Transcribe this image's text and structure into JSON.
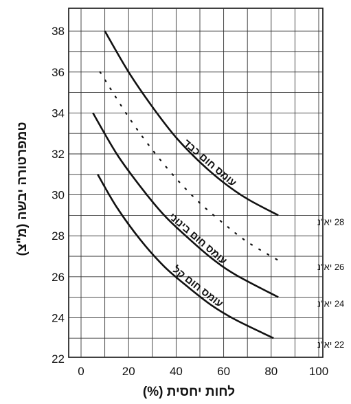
{
  "chart_data": {
    "type": "line",
    "xlabel": "לחות יחסית (%)",
    "ylabel": "טמפרטורה יבשה (מ\"צ)",
    "xlim": [
      0,
      100
    ],
    "ylim": [
      22,
      39
    ],
    "xticks": [
      "0",
      "20",
      "40",
      "60",
      "80",
      "100"
    ],
    "yticks": [
      "22",
      "24",
      "26",
      "28",
      "30",
      "32",
      "34",
      "36",
      "38"
    ],
    "grid": true,
    "series": [
      {
        "name": "עומס חום כבד",
        "end_label": "28 יא\"נ",
        "style": "solid",
        "x": [
          10,
          20,
          30,
          40,
          50,
          60,
          70,
          83
        ],
        "y": [
          38.0,
          36.0,
          34.3,
          32.8,
          31.6,
          30.6,
          29.8,
          29.0
        ]
      },
      {
        "name": "",
        "end_label": "26 יא\"נ",
        "style": "dotted",
        "x": [
          8,
          20,
          30,
          40,
          50,
          60,
          70,
          83
        ],
        "y": [
          36.0,
          33.8,
          32.2,
          30.8,
          29.6,
          28.6,
          27.7,
          26.8
        ]
      },
      {
        "name": "עומס חום בינוני",
        "end_label": "24 יא\"נ",
        "style": "solid",
        "x": [
          5,
          15,
          25,
          35,
          45,
          55,
          65,
          83
        ],
        "y": [
          34.0,
          32.0,
          30.4,
          29.0,
          27.9,
          26.9,
          26.1,
          25.0
        ]
      },
      {
        "name": "עומס חום קל",
        "end_label": "22 יא\"נ",
        "style": "solid",
        "x": [
          7,
          15,
          25,
          35,
          45,
          55,
          65,
          81
        ],
        "y": [
          31.0,
          29.4,
          27.8,
          26.5,
          25.5,
          24.6,
          23.9,
          23.0
        ]
      }
    ]
  }
}
